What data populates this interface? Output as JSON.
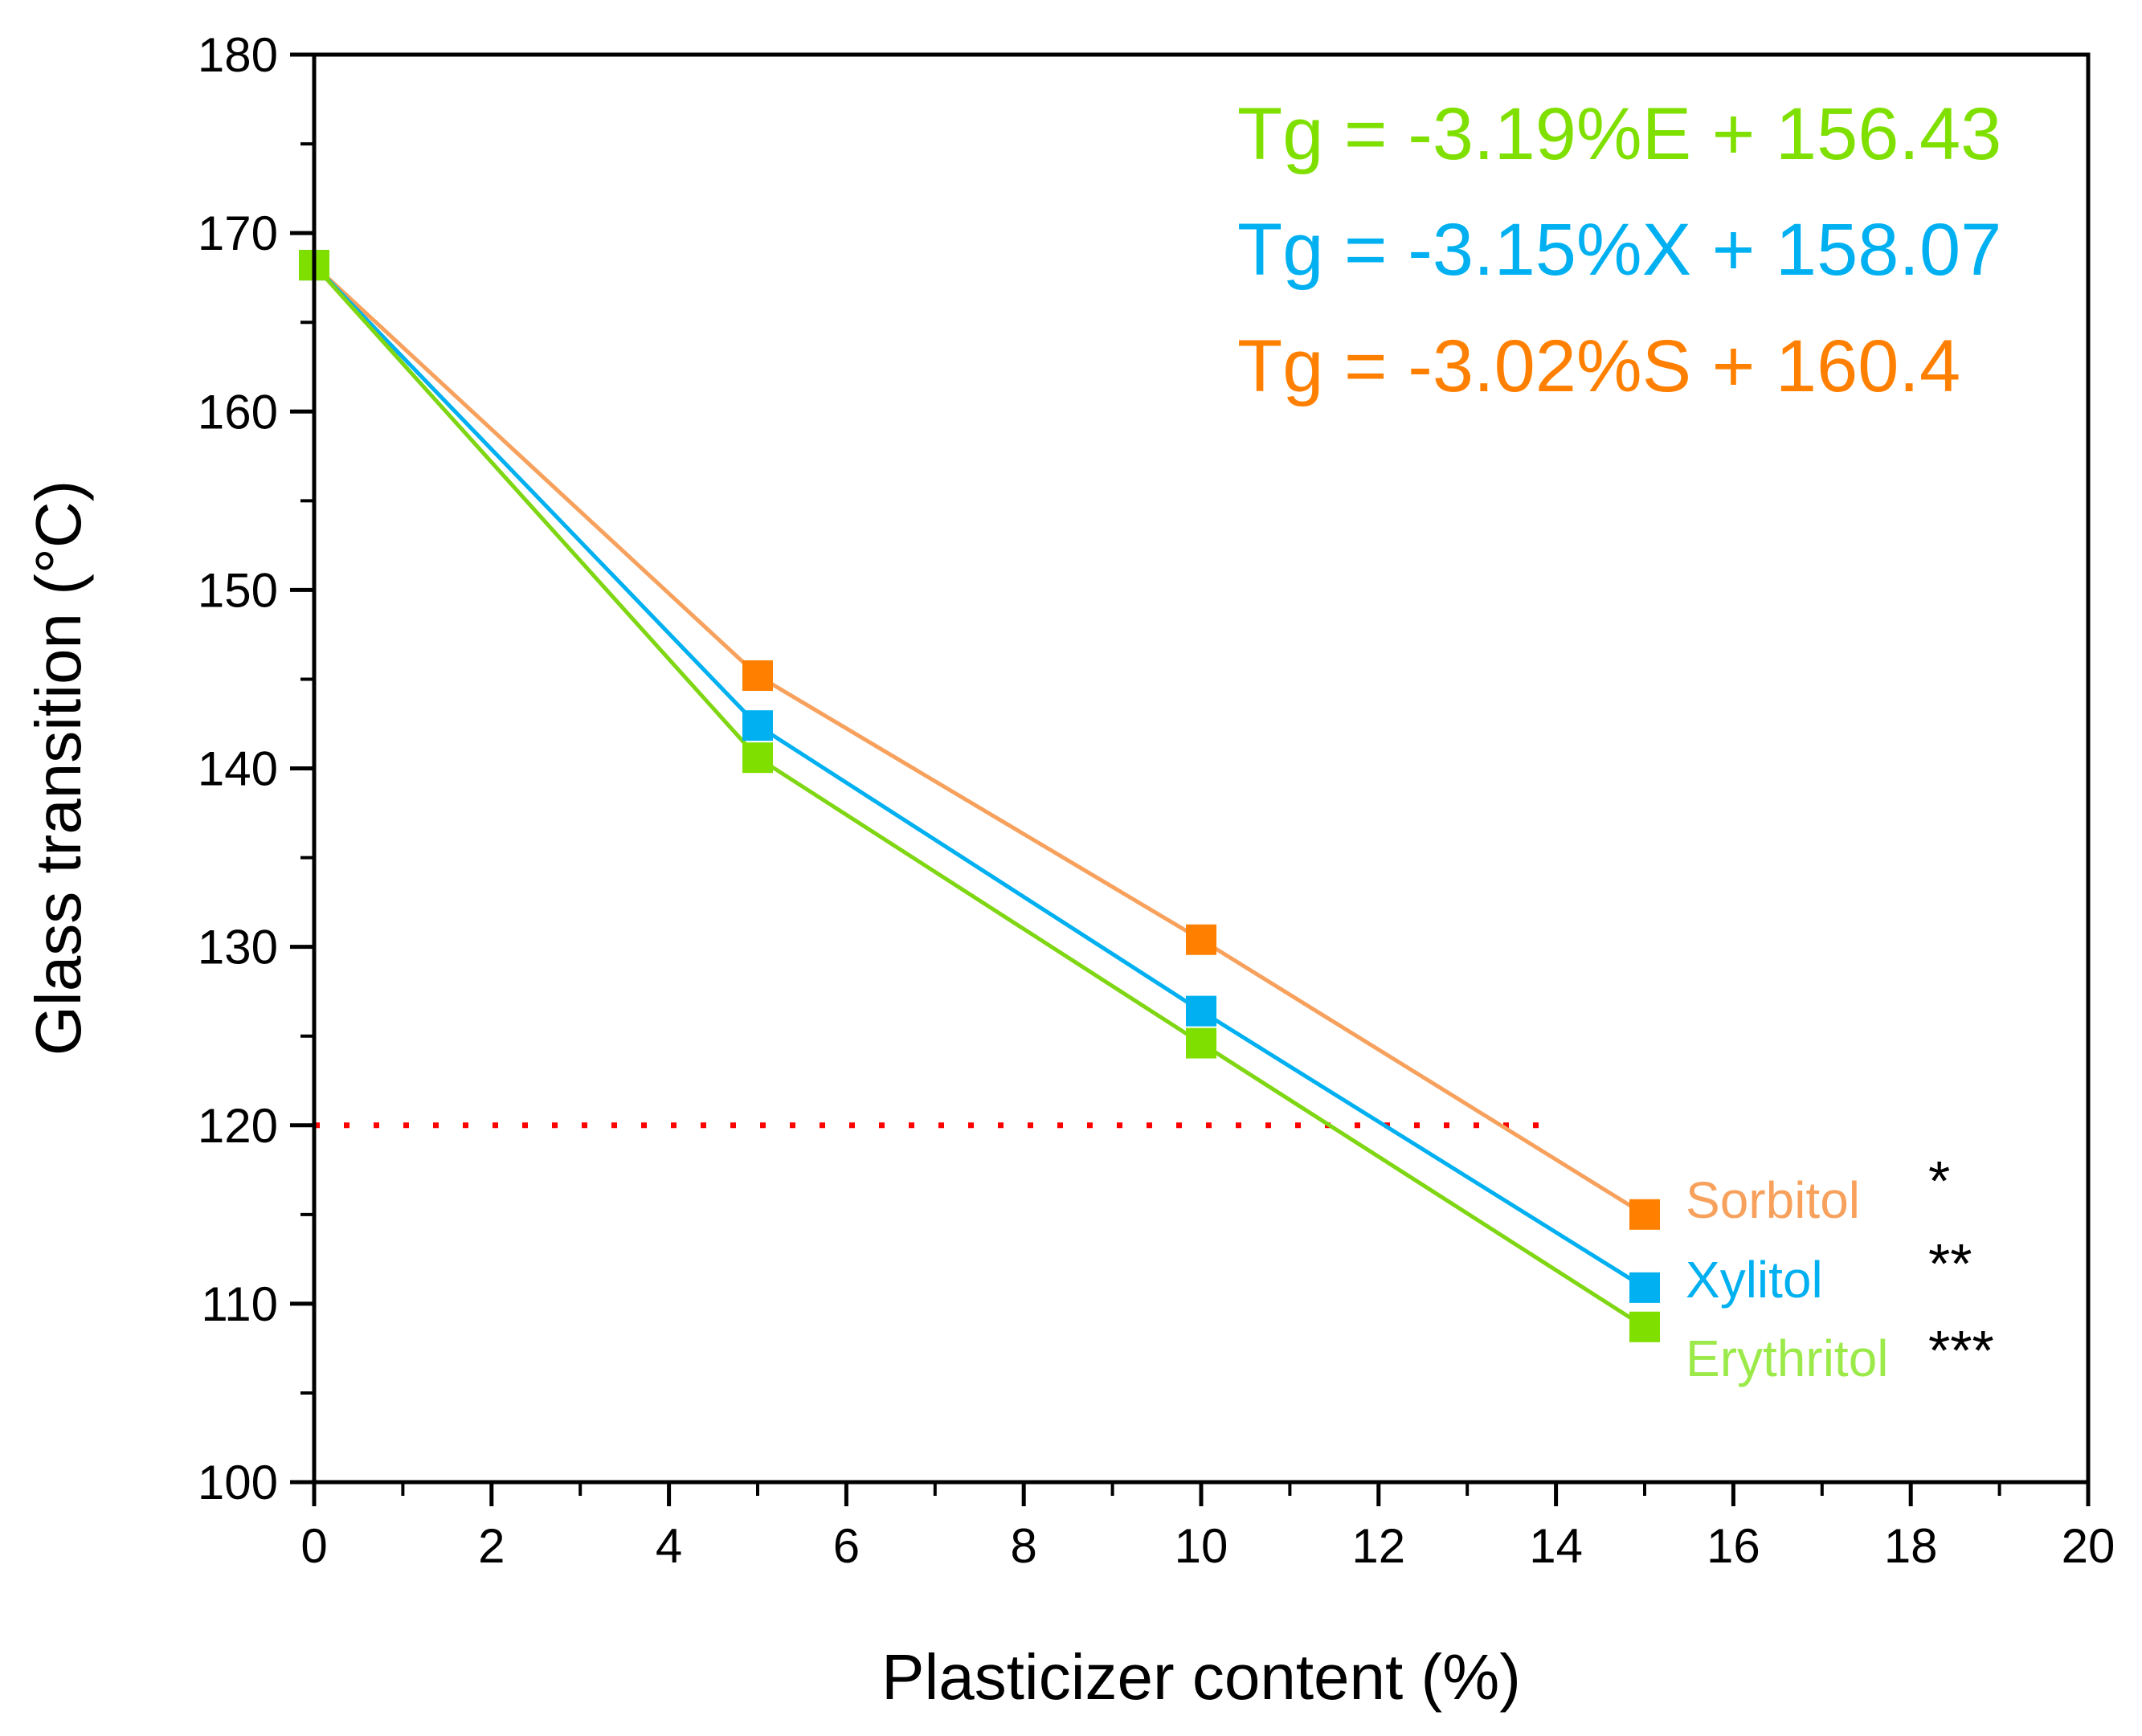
{
  "chart_data": {
    "type": "line",
    "xlabel": "Plasticizer content (%)",
    "ylabel": "Glass transition (°C)",
    "xlim": [
      0,
      20
    ],
    "ylim": [
      100,
      180
    ],
    "xticks": [
      0,
      2,
      4,
      6,
      8,
      10,
      12,
      14,
      16,
      18,
      20
    ],
    "yticks": [
      100,
      110,
      120,
      130,
      140,
      150,
      160,
      170,
      180
    ],
    "x": [
      0,
      5,
      10,
      15
    ],
    "series": [
      {
        "name": "Sorbitol",
        "line_color": "#F7A15D",
        "marker_color": "#FF8000",
        "label_color": "#F7A15D",
        "values": [
          168.2,
          145.2,
          130.4,
          115.0
        ],
        "significance": "*"
      },
      {
        "name": "Xylitol",
        "line_color": "#00B0F0",
        "marker_color": "#00B0F0",
        "label_color": "#00B0F0",
        "values": [
          168.2,
          142.4,
          126.4,
          110.9
        ],
        "significance": "**"
      },
      {
        "name": "Erythritol",
        "line_color": "#7FD613",
        "marker_color": "#7FE000",
        "label_color": "#9BEA4A",
        "values": [
          168.2,
          140.6,
          124.6,
          108.7
        ],
        "significance": "***"
      }
    ],
    "reference_line": {
      "y": 120,
      "x_range": [
        0,
        14
      ],
      "color": "#FF0000",
      "style": "dotted"
    },
    "equations": [
      {
        "text": "Tg = -3.19%E + 156.43",
        "color": "#7FE000"
      },
      {
        "text": "Tg = -3.15%X + 158.07",
        "color": "#00B0F0"
      },
      {
        "text": "Tg = -3.02%S + 160.4",
        "color": "#FF8000"
      }
    ],
    "grid": false
  }
}
